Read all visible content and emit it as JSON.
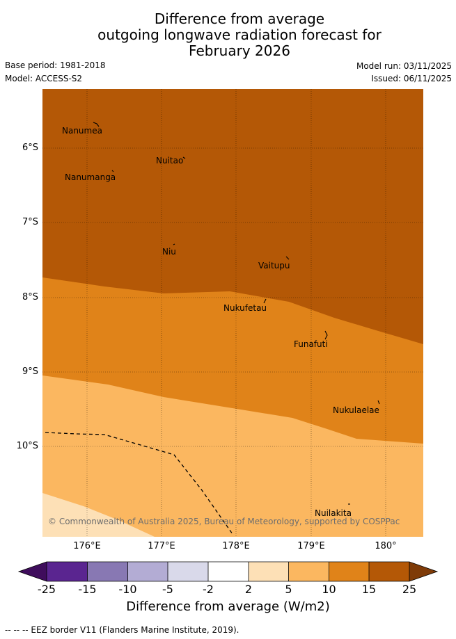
{
  "title": {
    "line1": "Difference from average",
    "line2": "outgoing longwave radiation forecast for",
    "line3": "February 2026"
  },
  "meta": {
    "base_period": "Base period: 1981-2018",
    "model": "Model: ACCESS-S2",
    "model_run": "Model run: 03/11/2025",
    "issued": "Issued: 06/11/2025"
  },
  "places": [
    {
      "name": "Nanumea"
    },
    {
      "name": "Nuitao"
    },
    {
      "name": "Nanumanga"
    },
    {
      "name": "Niu"
    },
    {
      "name": "Vaitupu"
    },
    {
      "name": "Nukufetau"
    },
    {
      "name": "Funafuti"
    },
    {
      "name": "Nukulaelae"
    },
    {
      "name": "Nuilakita"
    }
  ],
  "axes": {
    "lat_labels": [
      "6°S",
      "7°S",
      "8°S",
      "9°S",
      "10°S"
    ],
    "lon_labels": [
      "176°E",
      "177°E",
      "178°E",
      "179°E",
      "180°"
    ]
  },
  "copyright": "© Commonwealth of Australia 2025, Bureau of Meteorology, supported by COSPPac",
  "colorbar": {
    "title": "Difference from average (W/m2)",
    "ticks": [
      "-25",
      "-15",
      "-10",
      "-5",
      "-2",
      "2",
      "5",
      "10",
      "15",
      "25"
    ],
    "colors": [
      "#3f0d5c",
      "#5a2590",
      "#8878b3",
      "#b3acd4",
      "#d9d9ea",
      "#ffffff",
      "#fde0b6",
      "#fbb760",
      "#e08319",
      "#b45806",
      "#7f3b08"
    ]
  },
  "footnote": "--  --  -- EEZ border V11 (Flanders Marine Institute, 2019)."
}
